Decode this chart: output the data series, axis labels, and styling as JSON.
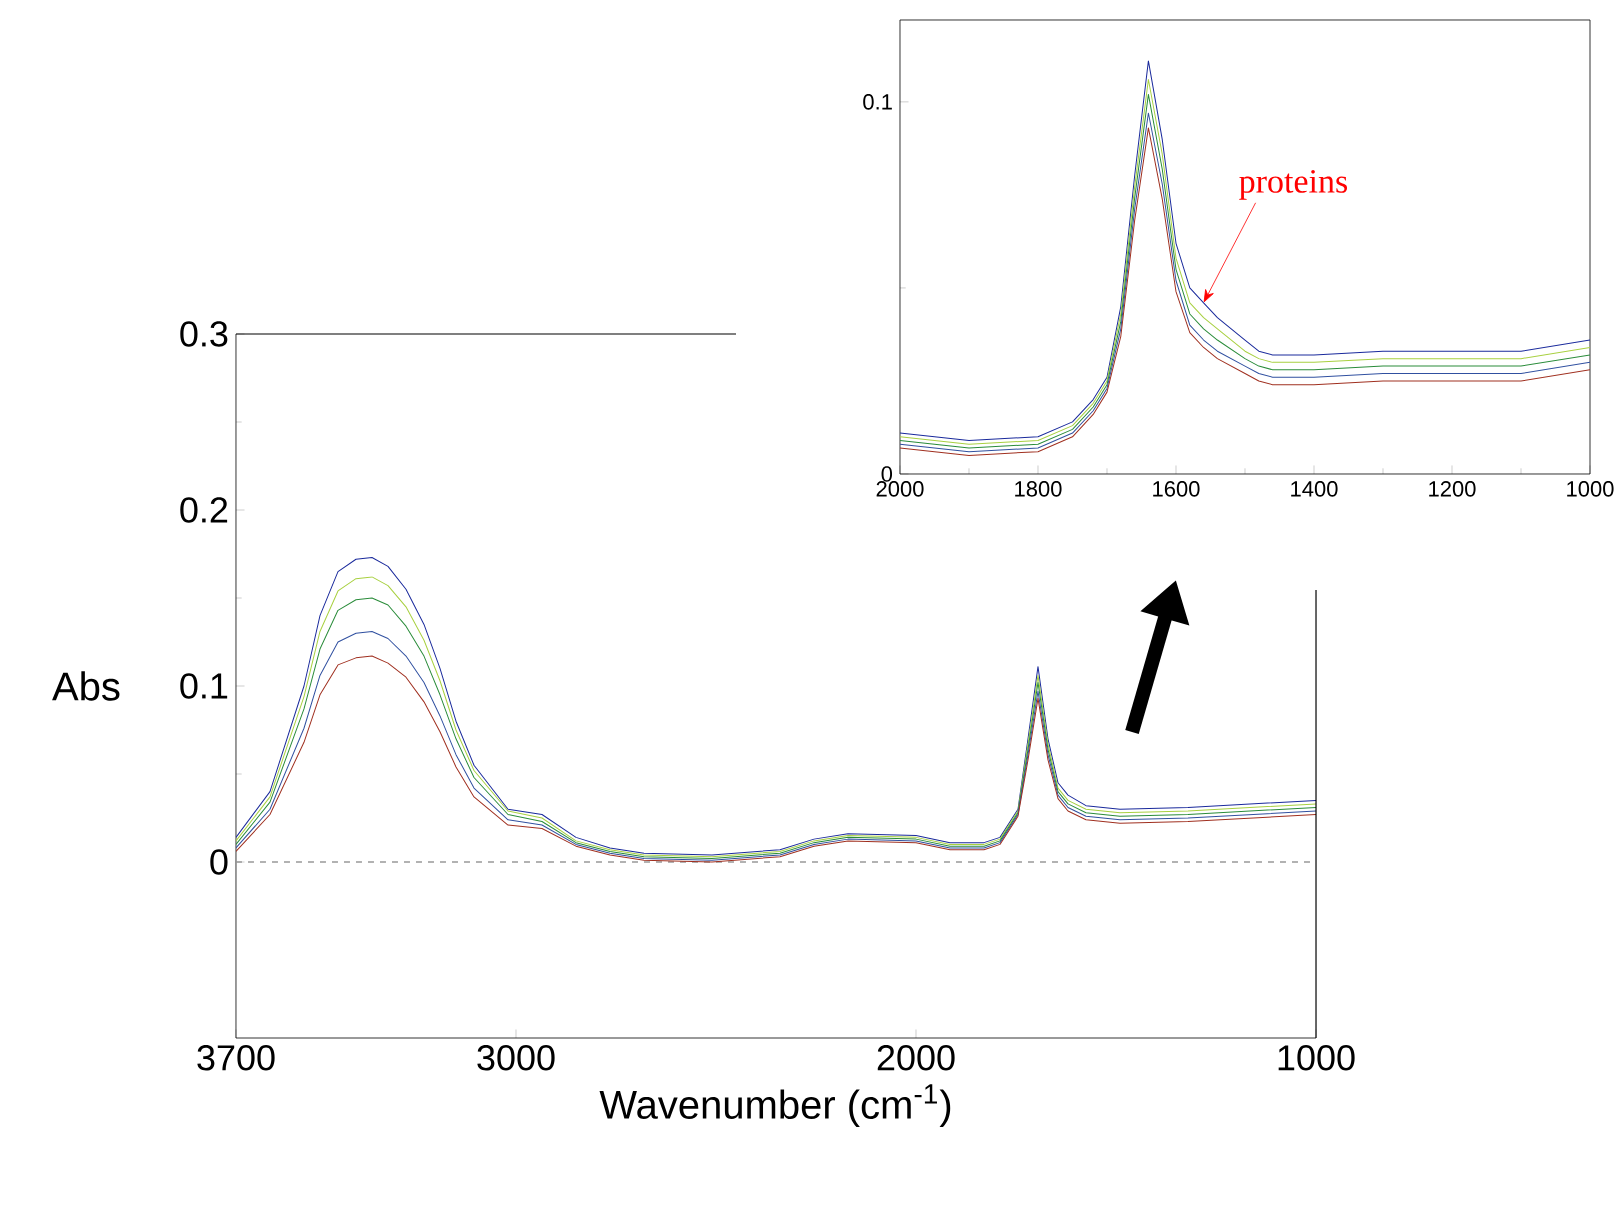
{
  "chart_data": [
    {
      "type": "line",
      "xlabel": "Wavenumber (cm$^{-1}$)",
      "ylabel": "Abs",
      "x": [
        3700,
        3615,
        3530,
        3490,
        3445,
        3400,
        3360,
        3320,
        3275,
        3230,
        3190,
        3150,
        3105,
        3020,
        2935,
        2850,
        2765,
        2680,
        2510,
        2340,
        2255,
        2170,
        2000,
        1915,
        1830,
        1790,
        1745,
        1720,
        1695,
        1670,
        1645,
        1620,
        1575,
        1490,
        1320,
        1000
      ],
      "series": [
        {
          "color": "#1a2a9c",
          "values": [
            0.014,
            0.04,
            0.1,
            0.14,
            0.165,
            0.172,
            0.173,
            0.168,
            0.155,
            0.135,
            0.11,
            0.08,
            0.055,
            0.03,
            0.027,
            0.014,
            0.008,
            0.005,
            0.004,
            0.007,
            0.013,
            0.016,
            0.015,
            0.011,
            0.011,
            0.014,
            0.03,
            0.07,
            0.111,
            0.07,
            0.045,
            0.038,
            0.032,
            0.03,
            0.031,
            0.035
          ]
        },
        {
          "color": "#a8d040",
          "values": [
            0.012,
            0.037,
            0.094,
            0.131,
            0.154,
            0.161,
            0.162,
            0.157,
            0.145,
            0.126,
            0.103,
            0.075,
            0.052,
            0.029,
            0.025,
            0.012,
            0.007,
            0.004,
            0.003,
            0.006,
            0.012,
            0.015,
            0.014,
            0.01,
            0.01,
            0.013,
            0.029,
            0.067,
            0.106,
            0.067,
            0.042,
            0.035,
            0.03,
            0.028,
            0.029,
            0.033
          ]
        },
        {
          "color": "#2a8c3a",
          "values": [
            0.01,
            0.034,
            0.087,
            0.121,
            0.143,
            0.149,
            0.15,
            0.146,
            0.134,
            0.117,
            0.095,
            0.07,
            0.048,
            0.027,
            0.023,
            0.011,
            0.006,
            0.003,
            0.002,
            0.005,
            0.011,
            0.014,
            0.013,
            0.009,
            0.009,
            0.012,
            0.028,
            0.064,
            0.102,
            0.064,
            0.04,
            0.033,
            0.028,
            0.026,
            0.027,
            0.031
          ]
        },
        {
          "color": "#3050a0",
          "values": [
            0.008,
            0.03,
            0.076,
            0.106,
            0.125,
            0.13,
            0.131,
            0.127,
            0.117,
            0.102,
            0.083,
            0.061,
            0.042,
            0.024,
            0.021,
            0.01,
            0.005,
            0.002,
            0.001,
            0.004,
            0.01,
            0.013,
            0.012,
            0.008,
            0.008,
            0.011,
            0.027,
            0.061,
            0.097,
            0.061,
            0.038,
            0.031,
            0.026,
            0.024,
            0.025,
            0.029
          ]
        },
        {
          "color": "#a03020",
          "values": [
            0.006,
            0.027,
            0.068,
            0.095,
            0.112,
            0.116,
            0.117,
            0.113,
            0.105,
            0.091,
            0.074,
            0.054,
            0.037,
            0.021,
            0.019,
            0.009,
            0.004,
            0.001,
            0.0,
            0.003,
            0.009,
            0.012,
            0.011,
            0.007,
            0.007,
            0.01,
            0.026,
            0.058,
            0.093,
            0.058,
            0.036,
            0.029,
            0.024,
            0.022,
            0.023,
            0.027
          ]
        }
      ],
      "xlim": [
        3700,
        1000
      ],
      "xticks": [
        3700,
        3000,
        2000,
        1000
      ],
      "ylim": [
        -0.1,
        0.3
      ],
      "yticks": [
        0,
        0.1,
        0.2,
        0.3
      ],
      "ref_lines": [
        {
          "axis": "y",
          "value": 0,
          "color": "#999999",
          "line_style": "dashed"
        }
      ]
    },
    {
      "type": "line",
      "x": [
        2000,
        1900,
        1800,
        1750,
        1720,
        1700,
        1680,
        1660,
        1640,
        1620,
        1600,
        1580,
        1560,
        1540,
        1500,
        1480,
        1460,
        1400,
        1300,
        1200,
        1100,
        1000
      ],
      "series": [
        {
          "color": "#1a2a9c",
          "values": [
            0.011,
            0.009,
            0.01,
            0.014,
            0.02,
            0.026,
            0.045,
            0.08,
            0.111,
            0.09,
            0.062,
            0.05,
            0.046,
            0.042,
            0.036,
            0.033,
            0.032,
            0.032,
            0.033,
            0.033,
            0.033,
            0.036
          ]
        },
        {
          "color": "#a8d040",
          "values": [
            0.01,
            0.008,
            0.009,
            0.013,
            0.019,
            0.025,
            0.043,
            0.077,
            0.106,
            0.086,
            0.058,
            0.046,
            0.042,
            0.039,
            0.033,
            0.031,
            0.03,
            0.03,
            0.031,
            0.031,
            0.031,
            0.034
          ]
        },
        {
          "color": "#2a8c3a",
          "values": [
            0.009,
            0.007,
            0.008,
            0.012,
            0.018,
            0.024,
            0.041,
            0.074,
            0.102,
            0.082,
            0.055,
            0.043,
            0.039,
            0.036,
            0.031,
            0.029,
            0.028,
            0.028,
            0.029,
            0.029,
            0.029,
            0.032
          ]
        },
        {
          "color": "#3050a0",
          "values": [
            0.008,
            0.006,
            0.007,
            0.011,
            0.017,
            0.023,
            0.039,
            0.071,
            0.097,
            0.078,
            0.052,
            0.04,
            0.036,
            0.033,
            0.029,
            0.027,
            0.026,
            0.026,
            0.027,
            0.027,
            0.027,
            0.03
          ]
        },
        {
          "color": "#a03020",
          "values": [
            0.007,
            0.005,
            0.006,
            0.01,
            0.016,
            0.022,
            0.037,
            0.068,
            0.093,
            0.074,
            0.049,
            0.038,
            0.034,
            0.031,
            0.027,
            0.025,
            0.024,
            0.024,
            0.025,
            0.025,
            0.025,
            0.028
          ]
        }
      ],
      "xlim": [
        2000,
        1000
      ],
      "xticks": [
        2000,
        1800,
        1600,
        1400,
        1200,
        1000
      ],
      "ylim": [
        0,
        0.122
      ],
      "yticks": [
        0,
        0.1
      ],
      "annotations": [
        {
          "text": "proteins",
          "x": 1560,
          "y": 0.046
        }
      ]
    }
  ]
}
